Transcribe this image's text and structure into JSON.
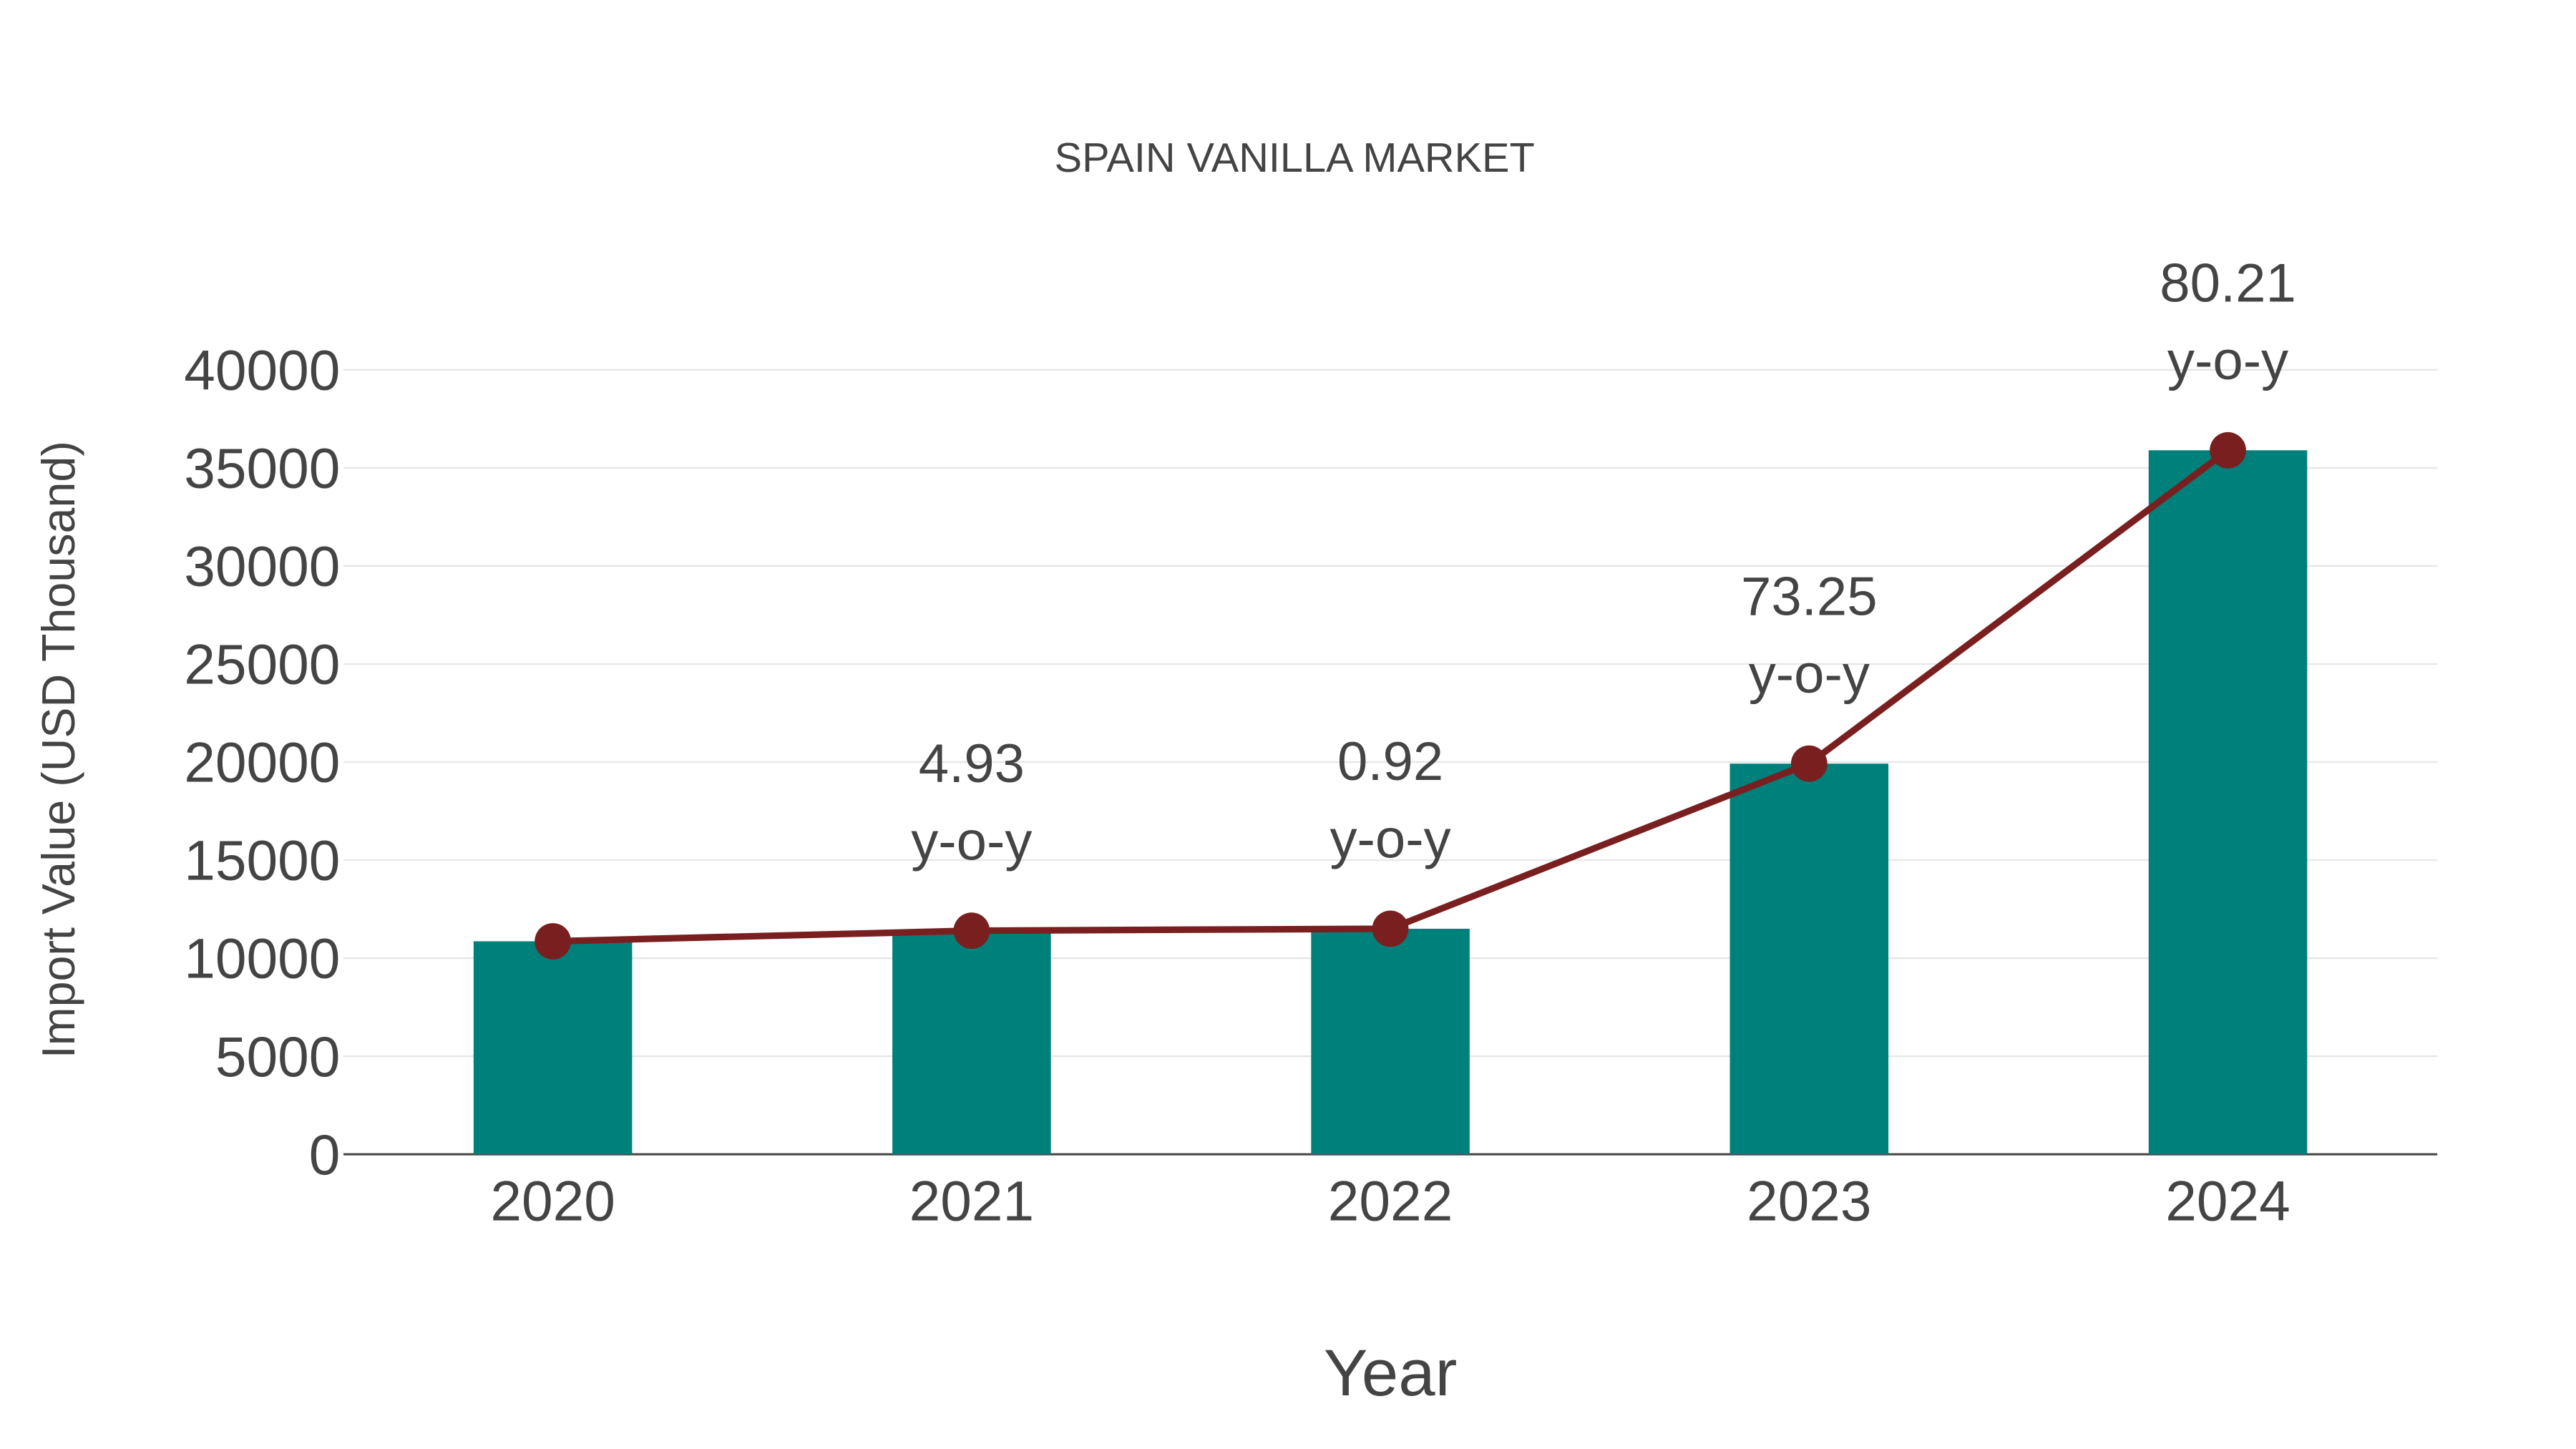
{
  "chart_data": {
    "type": "bar",
    "title": "SPAIN VANILLA MARKET",
    "xlabel": "Year",
    "ylabel": "Import Value (USD Thousand)",
    "categories": [
      "2020",
      "2021",
      "2022",
      "2023",
      "2024"
    ],
    "series": [
      {
        "name": "Import Value",
        "type": "bar",
        "color": "#00807a",
        "values": [
          10860,
          11400,
          11500,
          19920,
          35900
        ]
      },
      {
        "name": "Trend",
        "type": "line",
        "color": "#7a1f1f",
        "values": [
          10860,
          11400,
          11500,
          19920,
          35900
        ]
      }
    ],
    "annotations": [
      {
        "category": "2021",
        "value": "4.93",
        "suffix": "y-o-y"
      },
      {
        "category": "2022",
        "value": "0.92",
        "suffix": "y-o-y"
      },
      {
        "category": "2023",
        "value": "73.25",
        "suffix": "y-o-y"
      },
      {
        "category": "2024",
        "value": "80.21",
        "suffix": "y-o-y"
      }
    ],
    "yticks": [
      "0",
      "5000",
      "10000",
      "15000",
      "20000",
      "25000",
      "30000",
      "35000",
      "40000"
    ],
    "ylim": [
      0,
      40000
    ],
    "grid": true,
    "legend": "none"
  }
}
